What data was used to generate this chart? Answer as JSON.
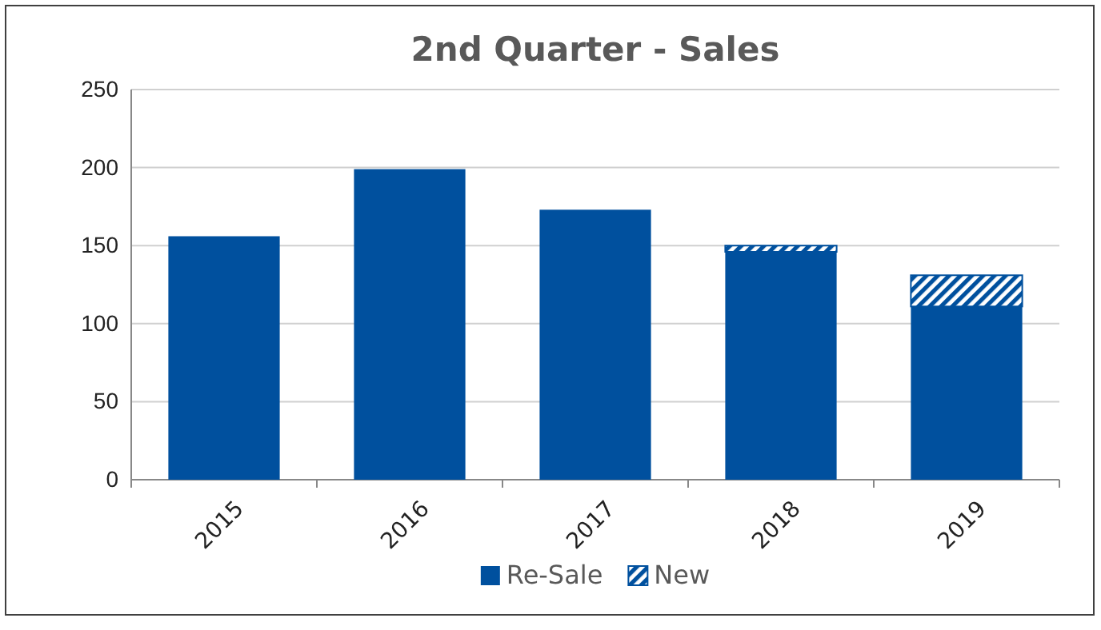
{
  "chart_data": {
    "type": "bar",
    "title": "2nd Quarter - Sales",
    "categories": [
      "2015",
      "2016",
      "2017",
      "2018",
      "2019"
    ],
    "stacked": true,
    "series": [
      {
        "name": "Re-Sale",
        "color": "#00509e",
        "values": [
          156,
          199,
          173,
          146,
          111
        ]
      },
      {
        "name": "New",
        "color": "#00509e",
        "values": [
          null,
          null,
          null,
          4,
          20
        ]
      }
    ],
    "ylim": [
      0,
      250
    ],
    "yticks": [
      0,
      50,
      100,
      150,
      200,
      250
    ],
    "grid": "y",
    "legend": "bottom"
  }
}
